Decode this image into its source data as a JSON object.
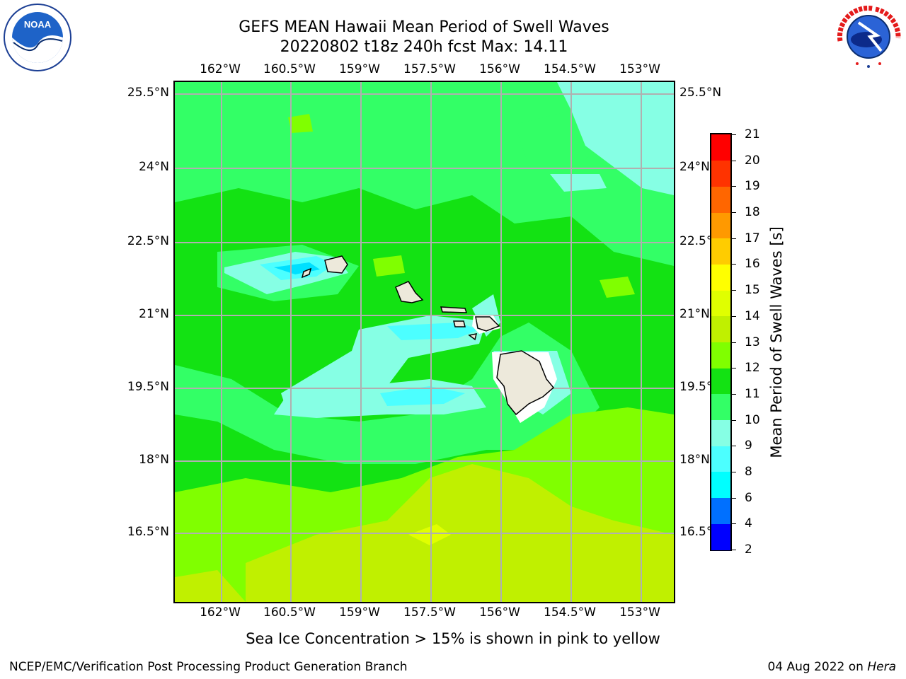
{
  "title": {
    "line1": "GEFS MEAN Hawaii Mean Period of Swell Waves",
    "line2": "20220802 t18z 240h fcst   Max: 14.11"
  },
  "map": {
    "lon_ticks": [
      "162°W",
      "160.5°W",
      "159°W",
      "157.5°W",
      "156°W",
      "154.5°W",
      "153°W"
    ],
    "lat_ticks": [
      "25.5°N",
      "24°N",
      "22.5°N",
      "21°N",
      "19.5°N",
      "18°N",
      "16.5°N"
    ],
    "lon_values": [
      -162,
      -160.5,
      -159,
      -157.5,
      -156,
      -154.5,
      -153
    ],
    "lat_values": [
      25.5,
      24,
      22.5,
      21,
      19.5,
      18,
      16.5
    ],
    "region": "Hawaii",
    "gridline_color": "#b0b0b0",
    "land_color": "#ede9db"
  },
  "colorbar": {
    "label": "Mean Period of Swell Waves [s]",
    "levels": [
      "2",
      "4",
      "6",
      "8",
      "9",
      "10",
      "11",
      "12",
      "13",
      "14",
      "15",
      "16",
      "17",
      "18",
      "19",
      "20",
      "21"
    ],
    "colors": [
      "#0000ff",
      "#0070ff",
      "#00ffff",
      "#4cffff",
      "#86ffe4",
      "#33ff66",
      "#13e213",
      "#80ff00",
      "#c0f000",
      "#e0ff00",
      "#ffff00",
      "#ffcc00",
      "#ff9900",
      "#ff6600",
      "#ff3300",
      "#ff0000"
    ]
  },
  "footer": {
    "note": "Sea Ice Concentration > 15% is shown in pink to yellow",
    "left": "NCEP/EMC/Verification Post Processing Product Generation Branch",
    "date": "04 Aug 2022 on",
    "host": "Hera"
  },
  "logos": {
    "left": "noaa-logo",
    "left_text": "NOAA",
    "right": "nws-logo",
    "right_text": "NATIONAL WEATHER SERVICE"
  }
}
